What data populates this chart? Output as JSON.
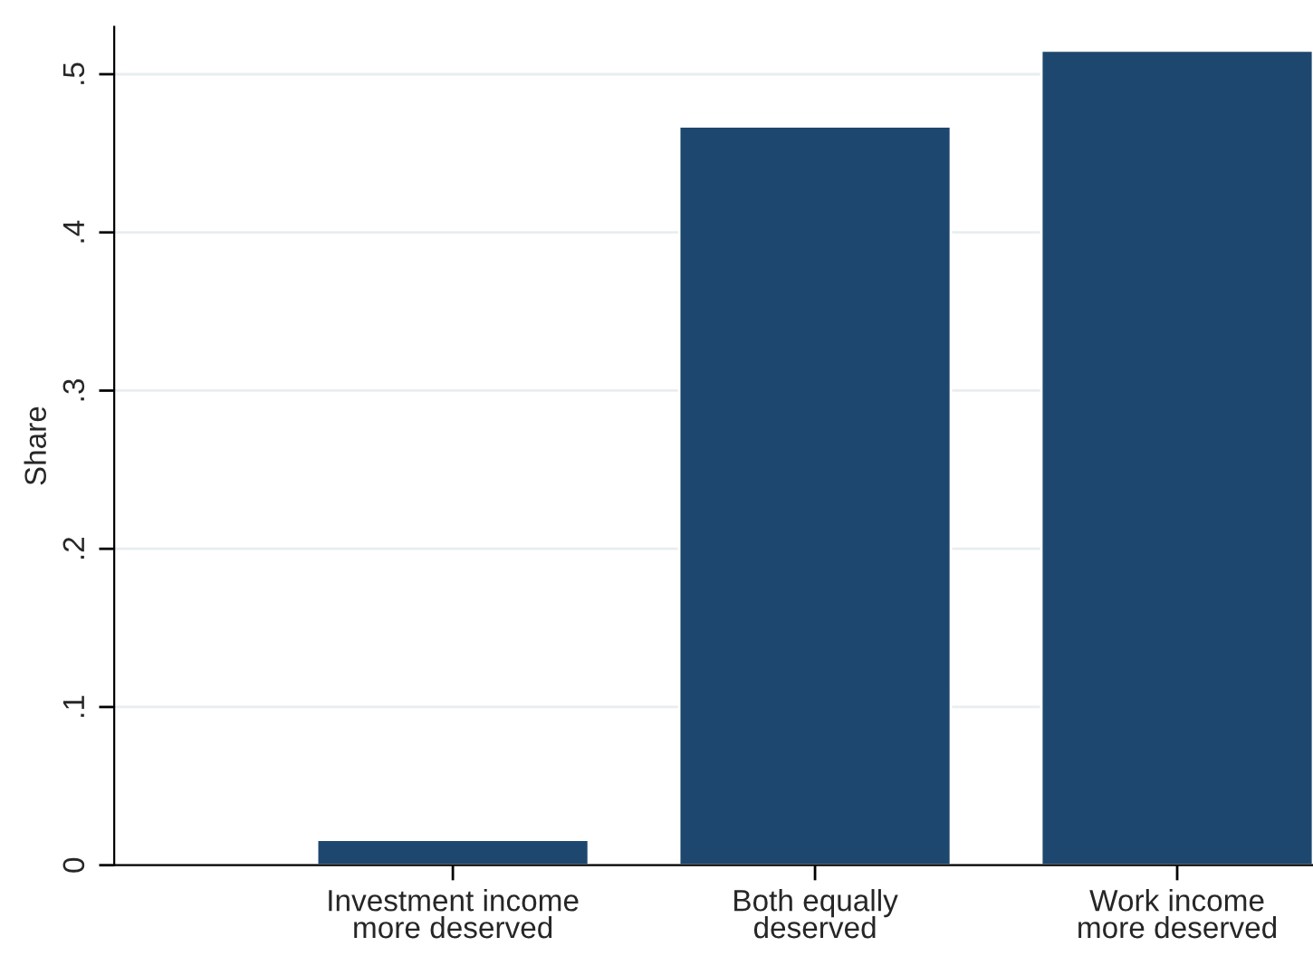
{
  "chart_data": {
    "type": "bar",
    "ylabel": "Share",
    "categories": [
      "Investment income\nmore deserved",
      "Both equally\ndeserved",
      "Work income\nmore deserved"
    ],
    "values": [
      0.016,
      0.467,
      0.515
    ],
    "color": "#1d476e",
    "ylim": [
      0,
      0.53
    ],
    "yticks": [
      0,
      {
        "value": 0.1,
        "label": ".1"
      },
      {
        "value": 0.2,
        "label": ".2"
      },
      {
        "value": 0.3,
        "label": ".3"
      },
      {
        "value": 0.4,
        "label": ".4"
      },
      {
        "value": 0.5,
        "label": ".5"
      }
    ],
    "grid": "y",
    "legend": false
  }
}
